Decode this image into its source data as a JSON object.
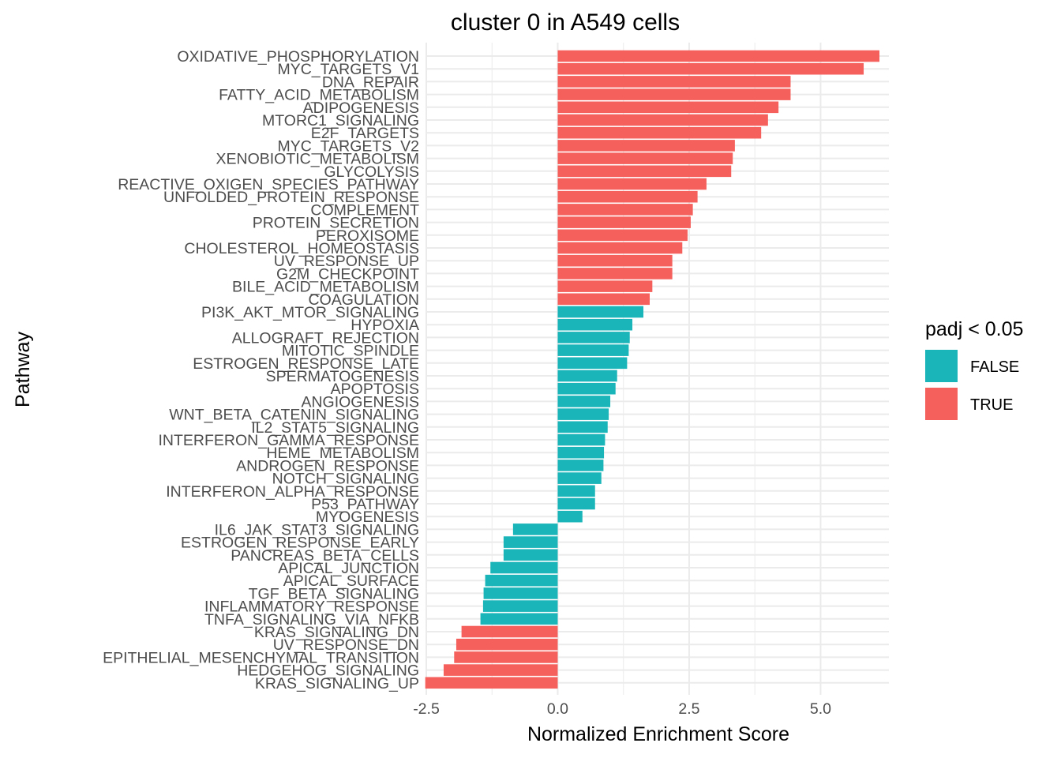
{
  "chart_data": {
    "type": "bar",
    "orientation": "horizontal",
    "title": "cluster 0 in A549 cells",
    "xlabel": "Normalized Enrichment Score",
    "ylabel": "Pathway",
    "xlim": [
      -2.5,
      6.3
    ],
    "x_ticks": [
      -2.5,
      0.0,
      2.5,
      5.0
    ],
    "x_tick_labels": [
      "-2.5",
      "0.0",
      "2.5",
      "5.0"
    ],
    "grid": true,
    "legend": {
      "title": "padj < 0.05",
      "position": "right",
      "entries": [
        {
          "label": "FALSE",
          "color": "#19b5b8"
        },
        {
          "label": "TRUE",
          "color": "#f5605c"
        }
      ]
    },
    "categories": [
      "OXIDATIVE_PHOSPHORYLATION",
      "MYC_TARGETS_V1",
      "DNA_REPAIR",
      "FATTY_ACID_METABOLISM",
      "ADIPOGENESIS",
      "MTORC1_SIGNALING",
      "E2F_TARGETS",
      "MYC_TARGETS_V2",
      "XENOBIOTIC_METABOLISM",
      "GLYCOLYSIS",
      "REACTIVE_OXIGEN_SPECIES_PATHWAY",
      "UNFOLDED_PROTEIN_RESPONSE",
      "COMPLEMENT",
      "PROTEIN_SECRETION",
      "PEROXISOME",
      "CHOLESTEROL_HOMEOSTASIS",
      "UV_RESPONSE_UP",
      "G2M_CHECKPOINT",
      "BILE_ACID_METABOLISM",
      "COAGULATION",
      "PI3K_AKT_MTOR_SIGNALING",
      "HYPOXIA",
      "ALLOGRAFT_REJECTION",
      "MITOTIC_SPINDLE",
      "ESTROGEN_RESPONSE_LATE",
      "SPERMATOGENESIS",
      "APOPTOSIS",
      "ANGIOGENESIS",
      "WNT_BETA_CATENIN_SIGNALING",
      "IL2_STAT5_SIGNALING",
      "INTERFERON_GAMMA_RESPONSE",
      "HEME_METABOLISM",
      "ANDROGEN_RESPONSE",
      "NOTCH_SIGNALING",
      "INTERFERON_ALPHA_RESPONSE",
      "P53_PATHWAY",
      "MYOGENESIS",
      "IL6_JAK_STAT3_SIGNALING",
      "ESTROGEN_RESPONSE_EARLY",
      "PANCREAS_BETA_CELLS",
      "APICAL_JUNCTION",
      "APICAL_SURFACE",
      "TGF_BETA_SIGNALING",
      "INFLAMMATORY_RESPONSE",
      "TNFA_SIGNALING_VIA_NFKB",
      "KRAS_SIGNALING_DN",
      "UV_RESPONSE_DN",
      "EPITHELIAL_MESENCHYMAL_TRANSITION",
      "HEDGEHOG_SIGNALING",
      "KRAS_SIGNALING_UP"
    ],
    "values": [
      6.12,
      5.82,
      4.43,
      4.43,
      4.2,
      4.0,
      3.87,
      3.37,
      3.33,
      3.3,
      2.83,
      2.66,
      2.57,
      2.53,
      2.47,
      2.37,
      2.18,
      2.18,
      1.8,
      1.75,
      1.63,
      1.42,
      1.37,
      1.35,
      1.32,
      1.13,
      1.1,
      1.0,
      0.97,
      0.95,
      0.9,
      0.88,
      0.87,
      0.83,
      0.71,
      0.71,
      0.47,
      -0.85,
      -1.03,
      -1.03,
      -1.28,
      -1.38,
      -1.41,
      -1.42,
      -1.47,
      -1.83,
      -1.93,
      -1.97,
      -2.17,
      -2.52
    ],
    "significant": [
      true,
      true,
      true,
      true,
      true,
      true,
      true,
      true,
      true,
      true,
      true,
      true,
      true,
      true,
      true,
      true,
      true,
      true,
      true,
      true,
      false,
      false,
      false,
      false,
      false,
      false,
      false,
      false,
      false,
      false,
      false,
      false,
      false,
      false,
      false,
      false,
      false,
      false,
      false,
      false,
      false,
      false,
      false,
      false,
      false,
      true,
      true,
      true,
      true,
      true
    ]
  }
}
